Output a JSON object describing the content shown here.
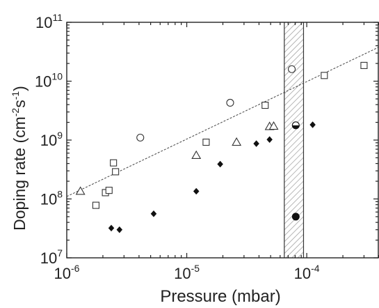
{
  "chart_data": {
    "type": "scatter",
    "xlabel": "Pressure (mbar)",
    "ylabel": "Doping rate (cm-2s-1)",
    "ylabel_parts": {
      "base": "Doping rate (cm",
      "exp1": "-2",
      "mid": "s",
      "exp2": "-1",
      "end": ")"
    },
    "x_scale": "log",
    "y_scale": "log",
    "xlim": [
      1e-06,
      0.0004
    ],
    "ylim": [
      10000000.0,
      100000000000.0
    ],
    "x_ticks": [
      {
        "value": 1e-06,
        "base": "10",
        "exp": "-6"
      },
      {
        "value": 1e-05,
        "base": "10",
        "exp": "-5"
      },
      {
        "value": 0.0001,
        "base": "10",
        "exp": "-4"
      }
    ],
    "y_ticks": [
      {
        "value": 10000000.0,
        "base": "10",
        "exp": "7"
      },
      {
        "value": 100000000.0,
        "base": "10",
        "exp": "8"
      },
      {
        "value": 1000000000.0,
        "base": "10",
        "exp": "9"
      },
      {
        "value": 10000000000.0,
        "base": "10",
        "exp": "10"
      },
      {
        "value": 100000000000.0,
        "base": "10",
        "exp": "11"
      }
    ],
    "shaded_band": {
      "x": [
        6.5e-05,
        9.4e-05
      ],
      "pattern": "hatched"
    },
    "trend_line": {
      "style": "dotted",
      "points": [
        [
          1e-06,
          110000000.0
        ],
        [
          0.0004,
          38000000000.0
        ]
      ]
    },
    "series": [
      {
        "marker": "open-square",
        "points": [
          [
            1.75e-06,
            78000000.0
          ],
          [
            2.1e-06,
            128000000.0
          ],
          [
            2.25e-06,
            140000000.0
          ],
          [
            2.45e-06,
            410000000.0
          ],
          [
            2.55e-06,
            290000000.0
          ],
          [
            1.45e-05,
            920000000.0
          ],
          [
            4.5e-05,
            3900000000.0
          ],
          [
            0.00014,
            12500000000.0
          ],
          [
            0.0003,
            18500000000.0
          ]
        ]
      },
      {
        "marker": "open-circle",
        "points": [
          [
            4.1e-06,
            1100000000.0
          ],
          [
            2.3e-05,
            4300000000.0
          ],
          [
            7.5e-05,
            16000000000.0
          ]
        ]
      },
      {
        "marker": "open-triangle",
        "points": [
          [
            1.3e-06,
            135000000.0
          ],
          [
            1.2e-05,
            550000000.0
          ],
          [
            2.6e-05,
            920000000.0
          ],
          [
            4.9e-05,
            1700000000.0
          ],
          [
            5.3e-05,
            1720000000.0
          ]
        ]
      },
      {
        "marker": "filled-diamond",
        "points": [
          [
            2.35e-06,
            32000000.0
          ],
          [
            2.75e-06,
            30000000.0
          ],
          [
            5.3e-06,
            56000000.0
          ],
          [
            1.2e-05,
            135000000.0
          ],
          [
            1.9e-05,
            390000000.0
          ],
          [
            3.8e-05,
            870000000.0
          ],
          [
            4.9e-05,
            1020000000.0
          ],
          [
            0.000112,
            1820000000.0
          ]
        ]
      },
      {
        "marker": "filled-circle",
        "points": [
          [
            8.1e-05,
            50000000.0
          ]
        ]
      },
      {
        "marker": "half-filled-circle",
        "points": [
          [
            8.1e-05,
            1780000000.0
          ]
        ]
      }
    ]
  }
}
